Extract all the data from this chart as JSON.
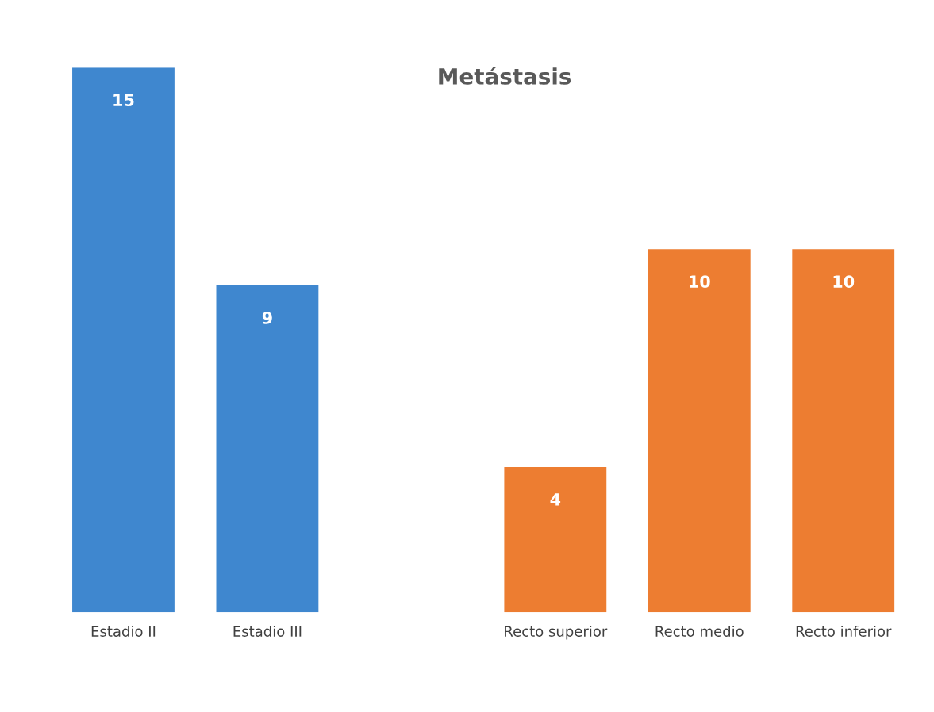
{
  "chart_data": {
    "type": "bar",
    "title": "Metástasis",
    "categories": [
      "Estadio II",
      "Estadio III",
      null,
      "Recto superior",
      "Recto medio",
      "Recto inferior"
    ],
    "values": [
      15,
      9,
      null,
      4,
      10,
      10
    ],
    "colors": [
      "#3f87cf",
      "#3f87cf",
      null,
      "#ed7d31",
      "#ed7d31",
      "#ed7d31"
    ],
    "data_labels": true,
    "grid": false,
    "legend": false
  }
}
